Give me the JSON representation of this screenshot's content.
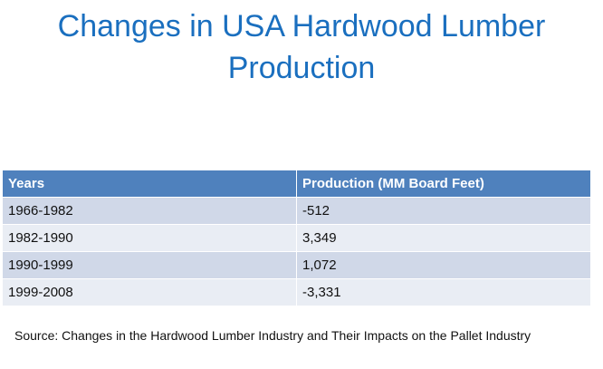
{
  "slide": {
    "title_line1": "Changes in USA Hardwood Lumber",
    "title_line2": "Production"
  },
  "table": {
    "headers": [
      "Years",
      "Production (MM Board Feet)"
    ],
    "rows": [
      [
        "1966-1982",
        "-512"
      ],
      [
        "1982-1990",
        "3,349"
      ],
      [
        "1990-1999",
        "1,072"
      ],
      [
        "1999-2008",
        "-3,331"
      ]
    ]
  },
  "source": "Source: Changes in the Hardwood Lumber Industry and Their Impacts on the Pallet Industry",
  "colors": {
    "title": "#1a6fbf",
    "header_bg": "#4f81bd",
    "row_band_1": "#d0d8e8",
    "row_band_2": "#e9edf4"
  }
}
